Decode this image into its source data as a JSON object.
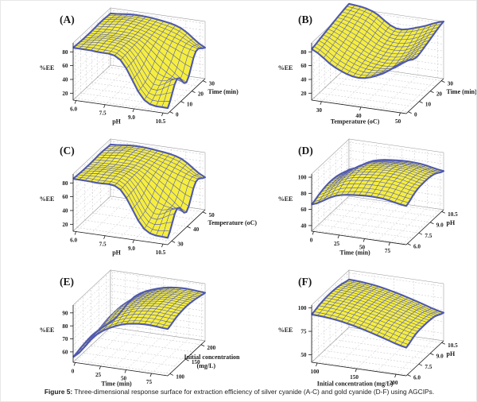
{
  "caption": {
    "label": "Figure 5:",
    "text": " Three-dimensional response surface for extraction efficiency of silver cyanide (A-C) and gold cyanide (D-F) using AGCIPs."
  },
  "colors": {
    "surface_fill": "#f6ee3e",
    "mesh_line": "#5a62b8",
    "rim_line": "#4f59ae",
    "grid_dash": "#c0c0c0",
    "wall_edge": "#9a9a9a",
    "axis_line": "#1a1a1a",
    "text": "#1a1a1a",
    "background": "#ffffff"
  },
  "chart_data": [
    {
      "id": "A",
      "type": "surface",
      "panel_label": "(A)",
      "zlabel": "%EE",
      "xlabel": "pH",
      "ylabel": "Time (min)",
      "x_ticks": [
        "6.0",
        "7.5",
        "9.0",
        "10.5"
      ],
      "x_tick_values": [
        6.0,
        7.5,
        9.0,
        10.5
      ],
      "y_ticks": [
        "0",
        "10",
        "20",
        "30"
      ],
      "y_tick_values": [
        0,
        10,
        20,
        30
      ],
      "z_ticks": [
        "20",
        "40",
        "60",
        "80"
      ],
      "z_tick_values": [
        20,
        40,
        60,
        80
      ],
      "x_range": [
        5.85,
        10.75
      ],
      "y_range": [
        -1.8,
        32
      ],
      "z_range": [
        10,
        93
      ],
      "x_points": [
        6.0,
        7.125,
        8.25,
        9.375,
        10.5
      ],
      "y_points": [
        0,
        7.5,
        15,
        22.5,
        30
      ],
      "z_grid": [
        [
          86,
          85,
          78,
          25,
          18
        ],
        [
          85,
          88,
          80,
          35,
          48
        ],
        [
          85,
          86,
          82,
          55,
          30
        ],
        [
          86,
          90,
          84,
          72,
          62
        ],
        [
          85,
          88,
          86,
          78,
          55
        ]
      ]
    },
    {
      "id": "B",
      "type": "surface",
      "panel_label": "(B)",
      "zlabel": "%EE",
      "xlabel": "Temperature (oC)",
      "ylabel": "Time (min)",
      "x_ticks": [
        "30",
        "40",
        "50"
      ],
      "x_tick_values": [
        30,
        40,
        50
      ],
      "y_ticks": [
        "0",
        "10",
        "20",
        "30"
      ],
      "y_tick_values": [
        0,
        10,
        20,
        30
      ],
      "z_ticks": [
        "20",
        "40",
        "60",
        "80"
      ],
      "z_tick_values": [
        20,
        40,
        60,
        80
      ],
      "x_range": [
        27.5,
        51.5
      ],
      "y_range": [
        -1.8,
        32
      ],
      "z_range": [
        10,
        93
      ],
      "x_points": [
        30,
        35,
        40,
        45,
        50
      ],
      "y_points": [
        0,
        7.5,
        15,
        22.5,
        30
      ],
      "z_grid": [
        [
          84,
          62,
          52,
          63,
          86
        ],
        [
          88,
          70,
          57,
          58,
          78
        ],
        [
          92,
          78,
          62,
          62,
          82
        ],
        [
          96,
          87,
          68,
          70,
          88
        ],
        [
          99,
          93,
          73,
          80,
          93
        ]
      ]
    },
    {
      "id": "C",
      "type": "surface",
      "panel_label": "(C)",
      "zlabel": "%EE",
      "xlabel": "pH",
      "ylabel": "Temperature (oC)",
      "x_ticks": [
        "6.0",
        "7.5",
        "9.0",
        "10.5"
      ],
      "x_tick_values": [
        6.0,
        7.5,
        9.0,
        10.5
      ],
      "y_ticks": [
        "30",
        "40",
        "50"
      ],
      "y_tick_values": [
        30,
        40,
        50
      ],
      "z_ticks": [
        "20",
        "40",
        "60",
        "80"
      ],
      "z_tick_values": [
        20,
        40,
        60,
        80
      ],
      "x_range": [
        5.85,
        10.75
      ],
      "y_range": [
        27.5,
        51.5
      ],
      "z_range": [
        10,
        93
      ],
      "x_points": [
        6.0,
        7.125,
        8.25,
        9.375,
        10.5
      ],
      "y_points": [
        30,
        35,
        40,
        45,
        50
      ],
      "z_grid": [
        [
          86,
          85,
          80,
          28,
          20
        ],
        [
          85,
          88,
          82,
          38,
          50
        ],
        [
          85,
          86,
          83,
          58,
          32
        ],
        [
          86,
          90,
          85,
          73,
          63
        ],
        [
          85,
          88,
          86,
          79,
          57
        ]
      ]
    },
    {
      "id": "D",
      "type": "surface",
      "panel_label": "(D)",
      "zlabel": "%EE",
      "xlabel": "Time (min)",
      "ylabel": "pH",
      "x_ticks": [
        "0",
        "25",
        "50",
        "75"
      ],
      "x_tick_values": [
        0,
        25,
        50,
        75
      ],
      "y_ticks": [
        "6.0",
        "7.5",
        "9.0",
        "10.5"
      ],
      "y_tick_values": [
        6.0,
        7.5,
        9.0,
        10.5
      ],
      "z_ticks": [
        "40",
        "60",
        "80",
        "100"
      ],
      "z_tick_values": [
        40,
        60,
        80,
        100
      ],
      "x_range": [
        -2,
        91
      ],
      "y_range": [
        5.85,
        10.75
      ],
      "z_range": [
        33,
        104
      ],
      "x_points": [
        0,
        22.5,
        45,
        67.5,
        90
      ],
      "y_points": [
        6.0,
        7.125,
        8.25,
        9.375,
        10.5
      ],
      "z_grid": [
        [
          66,
          81,
          86,
          86,
          81
        ],
        [
          71,
          88,
          93,
          93,
          88
        ],
        [
          73,
          90,
          96,
          96,
          90
        ],
        [
          71,
          88,
          93,
          93,
          88
        ],
        [
          66,
          81,
          86,
          86,
          81
        ]
      ]
    },
    {
      "id": "E",
      "type": "surface",
      "panel_label": "(E)",
      "zlabel": "%EE",
      "xlabel": "Time (min)",
      "ylabel": "Initial concentration",
      "ylabel2": "(mg/L)",
      "x_ticks": [
        "0",
        "25",
        "50",
        "75"
      ],
      "x_tick_values": [
        0,
        25,
        50,
        75
      ],
      "y_ticks": [
        "100",
        "150",
        "200"
      ],
      "y_tick_values": [
        100,
        150,
        200
      ],
      "z_ticks": [
        "60",
        "70",
        "80",
        "90"
      ],
      "z_tick_values": [
        60,
        70,
        80,
        90
      ],
      "x_range": [
        -2,
        91
      ],
      "y_range": [
        93,
        213
      ],
      "z_range": [
        52,
        96
      ],
      "x_points": [
        0,
        22.5,
        45,
        67.5,
        90
      ],
      "y_points": [
        100,
        125,
        150,
        175,
        200
      ],
      "z_grid": [
        [
          56,
          76,
          86,
          89,
          88
        ],
        [
          58,
          79,
          89,
          92,
          91
        ],
        [
          59,
          81,
          90,
          93,
          92
        ],
        [
          58,
          80,
          89,
          92,
          91
        ],
        [
          56,
          78,
          87,
          90,
          89
        ]
      ]
    },
    {
      "id": "F",
      "type": "surface",
      "panel_label": "(F)",
      "zlabel": "%EE",
      "xlabel": "Initial concentration (mg/L)",
      "ylabel": "pH",
      "x_ticks": [
        "100",
        "150",
        "200"
      ],
      "x_tick_values": [
        100,
        150,
        200
      ],
      "y_ticks": [
        "6.0",
        "7.5",
        "9.0",
        "10.5"
      ],
      "y_tick_values": [
        6.0,
        7.5,
        9.0,
        10.5
      ],
      "z_ticks": [
        "50",
        "75",
        "100"
      ],
      "z_tick_values": [
        50,
        75,
        100
      ],
      "x_range": [
        93,
        213
      ],
      "y_range": [
        5.85,
        10.75
      ],
      "z_range": [
        42,
        103
      ],
      "x_points": [
        100,
        127.5,
        155,
        182.5,
        210
      ],
      "y_points": [
        6.0,
        7.125,
        8.25,
        9.375,
        10.5
      ],
      "z_grid": [
        [
          93,
          91,
          86,
          79,
          72
        ],
        [
          96,
          94,
          89,
          83,
          77
        ],
        [
          97,
          95,
          90,
          84,
          78
        ],
        [
          96,
          94,
          89,
          83,
          77
        ],
        [
          93,
          91,
          86,
          79,
          72
        ]
      ]
    }
  ]
}
